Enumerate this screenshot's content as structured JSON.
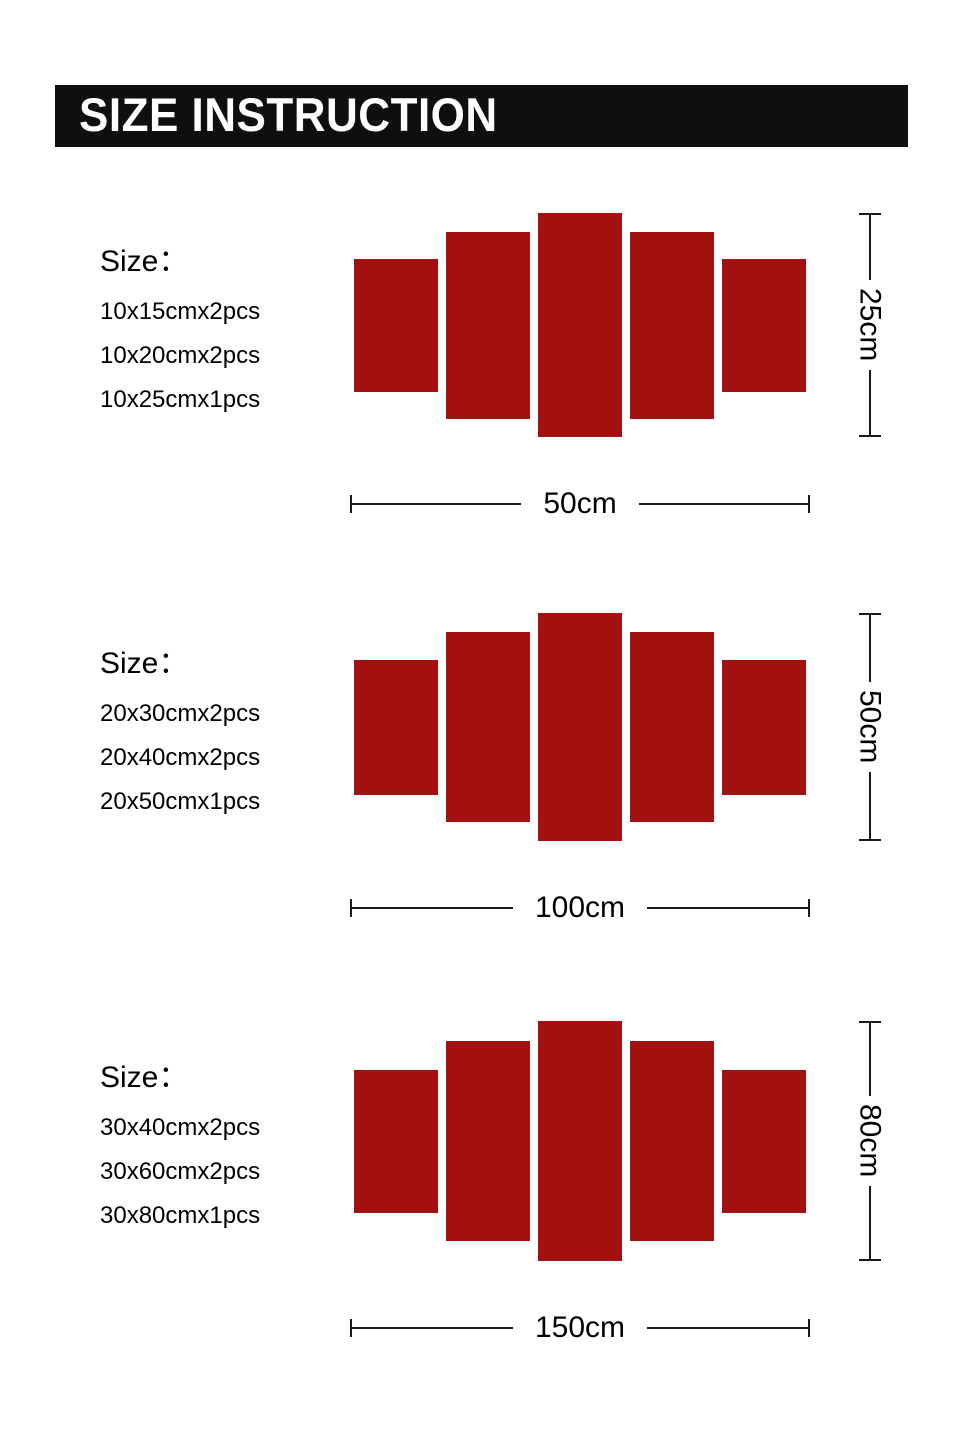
{
  "header": {
    "title": "SIZE INSTRUCTION"
  },
  "colors": {
    "panel": "#a31010",
    "header_bg": "#0f0f0f",
    "header_text": "#ffffff",
    "dim_line": "#1a1a1a",
    "text": "#000000"
  },
  "sections": [
    {
      "size_label": "Size：",
      "pieces": [
        "10x15cmx2pcs",
        "10x20cmx2pcs",
        "10x25cmx1pcs"
      ],
      "width_label": "50cm",
      "height_label": "25cm"
    },
    {
      "size_label": "Size：",
      "pieces": [
        "20x30cmx2pcs",
        "20x40cmx2pcs",
        "20x50cmx1pcs"
      ],
      "width_label": "100cm",
      "height_label": "50cm"
    },
    {
      "size_label": "Size：",
      "pieces": [
        "30x40cmx2pcs",
        "30x60cmx2pcs",
        "30x80cmx1pcs"
      ],
      "width_label": "150cm",
      "height_label": "80cm"
    }
  ]
}
